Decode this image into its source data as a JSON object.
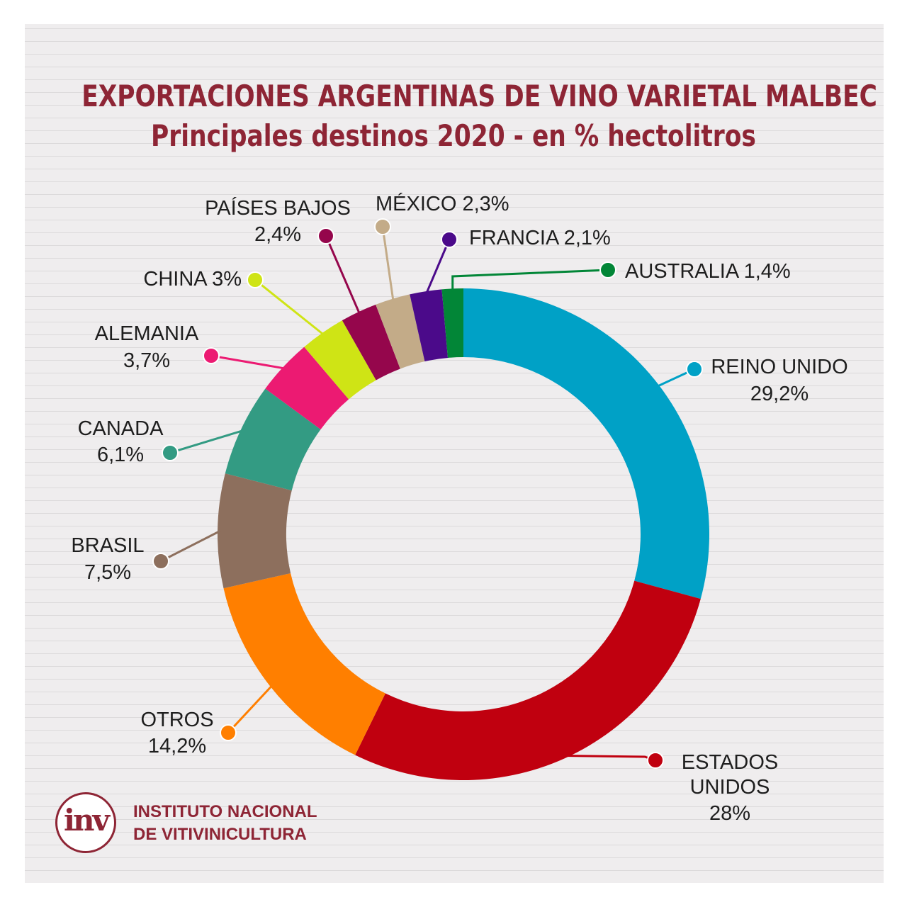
{
  "title": "EXPORTACIONES ARGENTINAS DE VINO VARIETAL MALBEC",
  "subtitle": "Principales destinos 2020 - en % hectolitros",
  "logo": {
    "mark_text": "inv",
    "line1": "INSTITUTO NACIONAL",
    "line2": "DE VITIVINICULTURA"
  },
  "chart_data": {
    "type": "pie",
    "title": "EXPORTACIONES ARGENTINAS DE VINO VARIETAL MALBEC",
    "subtitle": "Principales destinos 2020 - en % hectolitros",
    "unit": "%",
    "slices": [
      {
        "label": "REINO UNIDO",
        "value": 29.2,
        "display": "29,2%",
        "color": "#00a1c6"
      },
      {
        "label": "ESTADOS UNIDOS",
        "value": 28.0,
        "display": "28%",
        "color": "#c0000f"
      },
      {
        "label": "OTROS",
        "value": 14.2,
        "display": "14,2%",
        "color": "#ff7f00"
      },
      {
        "label": "BRASIL",
        "value": 7.5,
        "display": "7,5%",
        "color": "#8d6f5d"
      },
      {
        "label": "CANADA",
        "value": 6.1,
        "display": "6,1%",
        "color": "#339b83"
      },
      {
        "label": "ALEMANIA",
        "value": 3.7,
        "display": "3,7%",
        "color": "#ec1a72"
      },
      {
        "label": "CHINA",
        "value": 3.0,
        "display": "3%",
        "color": "#cfe415"
      },
      {
        "label": "PAÍSES BAJOS",
        "value": 2.4,
        "display": "2,4%",
        "color": "#95064c"
      },
      {
        "label": "MÉXICO",
        "value": 2.3,
        "display": "2,3%",
        "color": "#c3ab88"
      },
      {
        "label": "FRANCIA",
        "value": 2.1,
        "display": "2,1%",
        "color": "#4b0a8a"
      },
      {
        "label": "AUSTRALIA",
        "value": 1.4,
        "display": "1,4%",
        "color": "#028637"
      }
    ]
  }
}
